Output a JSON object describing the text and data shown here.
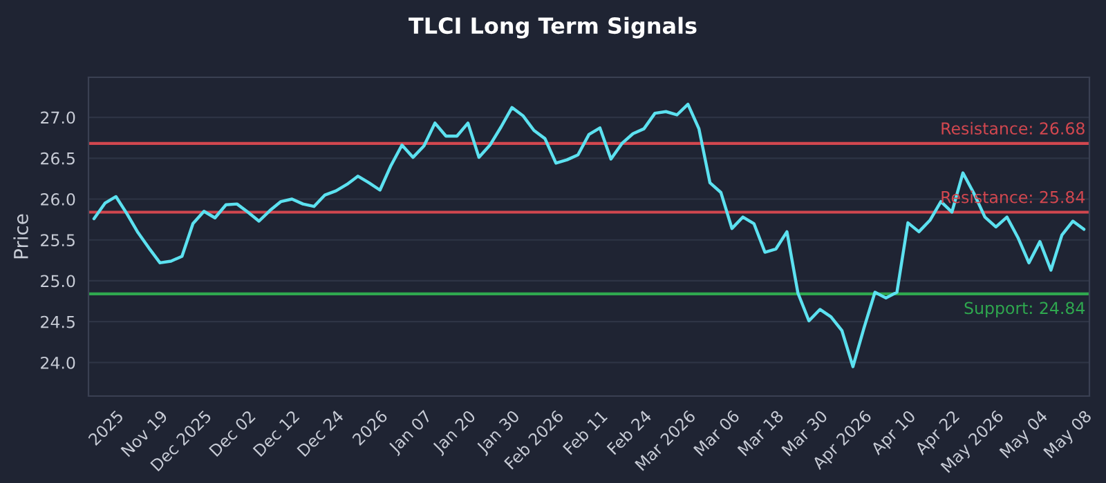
{
  "chart_data": {
    "type": "line",
    "title": "TLCI Long Term Signals",
    "ylabel": "Price",
    "categories": [
      null,
      null,
      "2025",
      null,
      null,
      null,
      "Nov 19",
      null,
      null,
      null,
      "Dec 2025",
      null,
      null,
      null,
      "Dec 02",
      null,
      null,
      null,
      "Dec 12",
      null,
      null,
      null,
      "Dec 24",
      null,
      null,
      null,
      "2026",
      null,
      null,
      null,
      "Jan 07",
      null,
      null,
      null,
      "Jan 20",
      null,
      null,
      null,
      "Jan 30",
      null,
      null,
      null,
      "Feb 2026",
      null,
      null,
      null,
      "Feb 11",
      null,
      null,
      null,
      "Feb 24",
      null,
      null,
      null,
      "Mar 2026",
      null,
      null,
      null,
      "Mar 06",
      null,
      null,
      null,
      "Mar 18",
      null,
      null,
      null,
      "Mar 30",
      null,
      null,
      null,
      "Apr 2026",
      null,
      null,
      null,
      "Apr 10",
      null,
      null,
      null,
      "Apr 22",
      null,
      null,
      null,
      "May 2026",
      null,
      null,
      null,
      "May 04",
      null,
      null,
      null,
      "May 08"
    ],
    "series": [
      {
        "color": "#5ce1f0",
        "values": [
          25.76,
          25.95,
          26.03,
          25.82,
          25.59,
          25.4,
          25.22,
          25.24,
          25.3,
          25.7,
          25.85,
          25.77,
          25.93,
          25.94,
          25.84,
          25.73,
          25.86,
          25.97,
          26.0,
          25.94,
          25.91,
          26.05,
          26.1,
          26.18,
          26.28,
          26.2,
          26.11,
          26.41,
          26.66,
          26.51,
          26.65,
          26.93,
          26.77,
          26.77,
          26.93,
          26.51,
          26.66,
          26.88,
          27.12,
          27.02,
          26.84,
          26.74,
          26.44,
          26.48,
          26.54,
          26.79,
          26.87,
          26.49,
          26.68,
          26.8,
          26.86,
          27.05,
          27.07,
          27.03,
          27.16,
          26.86,
          26.2,
          26.08,
          25.64,
          25.78,
          25.7,
          25.35,
          25.39,
          25.6,
          24.85,
          24.51,
          24.65,
          24.56,
          24.39,
          23.95,
          24.42,
          24.86,
          24.79,
          24.86,
          25.71,
          25.6,
          25.74,
          25.97,
          25.84,
          26.32,
          26.07,
          25.78,
          25.66,
          25.78,
          25.53,
          25.22,
          25.48,
          25.13,
          25.56,
          25.73,
          25.63
        ]
      }
    ],
    "ylim": [
      23.59,
      27.49
    ],
    "yticks": [
      {
        "value": 24,
        "label": "24.0"
      },
      24.5,
      {
        "value": 25,
        "label": "25.0"
      },
      25.5,
      {
        "value": 26,
        "label": "26.0"
      },
      26.5,
      {
        "value": 27,
        "label": "27.0"
      }
    ],
    "grid": "y",
    "line_style": "solid",
    "marker": "none",
    "ref_lines": [
      {
        "axis": "y",
        "value": 26.68,
        "label": "Resistance: 26.68",
        "color": "#d2474f"
      },
      {
        "axis": "y",
        "value": 25.84,
        "label": "Resistance: 25.84",
        "color": "#d2474f"
      },
      {
        "axis": "y",
        "value": 24.84,
        "label": "Support: 24.84",
        "color": "#2fa84f"
      }
    ]
  }
}
